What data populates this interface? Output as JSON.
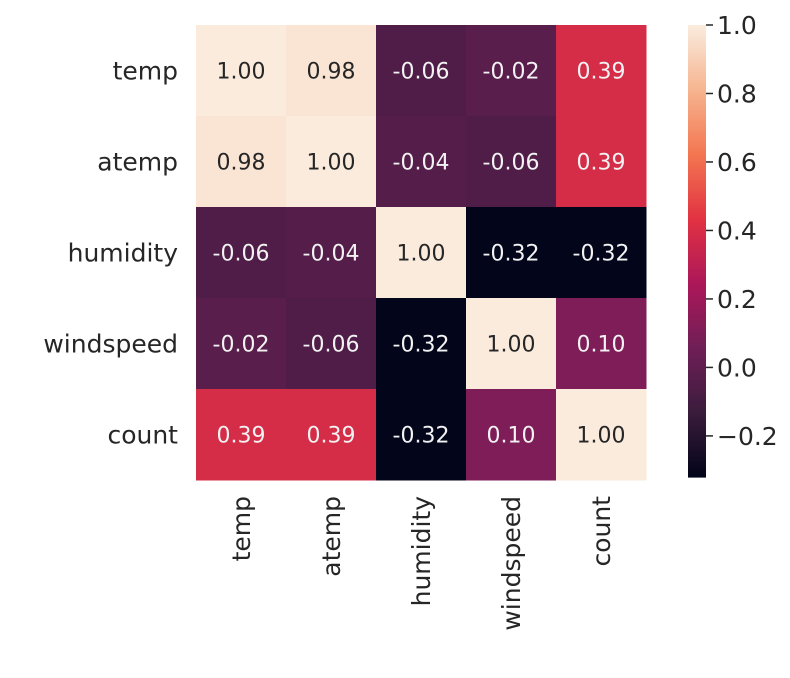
{
  "chart_data": {
    "type": "heatmap",
    "title": "",
    "xlabel": "",
    "ylabel": "",
    "x_labels": [
      "temp",
      "atemp",
      "humidity",
      "windspeed",
      "count"
    ],
    "y_labels": [
      "temp",
      "atemp",
      "humidity",
      "windspeed",
      "count"
    ],
    "values": [
      [
        1.0,
        0.98,
        -0.06,
        -0.02,
        0.39
      ],
      [
        0.98,
        1.0,
        -0.04,
        -0.06,
        0.39
      ],
      [
        -0.06,
        -0.04,
        1.0,
        -0.32,
        -0.32
      ],
      [
        -0.02,
        -0.06,
        -0.32,
        1.0,
        0.1
      ],
      [
        0.39,
        0.39,
        -0.32,
        0.1,
        1.0
      ]
    ],
    "annotations": [
      [
        "1.00",
        "0.98",
        "-0.06",
        "-0.02",
        "0.39"
      ],
      [
        "0.98",
        "1.00",
        "-0.04",
        "-0.06",
        "0.39"
      ],
      [
        "-0.06",
        "-0.04",
        "1.00",
        "-0.32",
        "-0.32"
      ],
      [
        "-0.02",
        "-0.06",
        "-0.32",
        "1.00",
        "0.10"
      ],
      [
        "0.39",
        "0.39",
        "-0.32",
        "0.10",
        "1.00"
      ]
    ],
    "colormap": "rocket",
    "colorbar": {
      "range": [
        -0.32,
        1.0
      ],
      "ticks": [
        1.0,
        0.8,
        0.6,
        0.4,
        0.2,
        0.0,
        -0.2
      ],
      "tick_labels": [
        "1.0",
        "0.8",
        "0.6",
        "0.4",
        "0.2",
        "0.0",
        "−0.2"
      ]
    }
  },
  "colors": {
    "rocket_stops": [
      "#03051a",
      "#3b1c3d",
      "#701f57",
      "#ad1759",
      "#e13342",
      "#f37651",
      "#f6b48f",
      "#faebdd"
    ],
    "text_light": "#f2f2f2",
    "text_dark": "#262626",
    "axis_text": "#262626"
  }
}
